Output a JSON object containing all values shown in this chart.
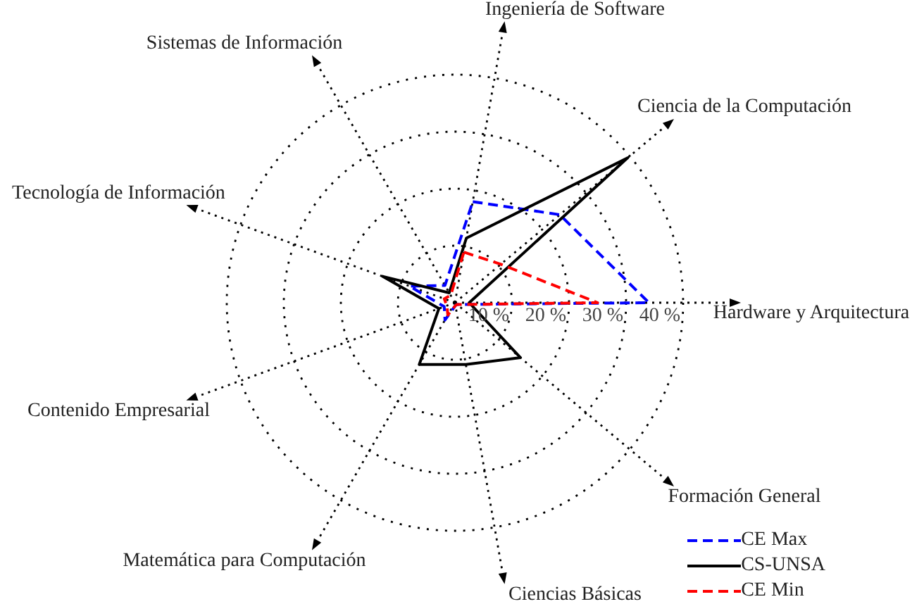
{
  "chart_data": {
    "type": "radar",
    "categories": [
      "Ingeniería de Software",
      "Ciencia de la Computación",
      "Hardware y Arquitectura",
      "Formación General",
      "Ciencias Básicas",
      "Matemática para Computación",
      "Contenido Empresarial",
      "Tecnología de Información",
      "Sistemas de Información"
    ],
    "series": [
      {
        "name": "CE Max",
        "color": "#0000ff",
        "line_style": "dashed",
        "values": [
          18,
          24,
          34,
          0.5,
          0.5,
          3.5,
          2,
          8.5,
          3.5
        ]
      },
      {
        "name": "CS-UNSA",
        "color": "#000000",
        "line_style": "solid",
        "values": [
          11.5,
          39.5,
          2.5,
          15,
          11,
          12.5,
          3,
          13.5,
          2
        ]
      },
      {
        "name": "CE Min",
        "color": "#ff0000",
        "line_style": "dashed",
        "values": [
          9,
          10.5,
          25,
          0.5,
          0.5,
          2.5,
          1.5,
          2,
          1.5
        ]
      }
    ],
    "ylim": [
      0,
      40
    ],
    "yticks": [
      {
        "value": 10,
        "label": "10 %"
      },
      {
        "value": 20,
        "label": "20 %"
      },
      {
        "value": 30,
        "label": "30 %"
      },
      {
        "value": 40,
        "label": "40 %"
      }
    ],
    "grid": true,
    "legend": "bottom right",
    "marker": "none"
  }
}
